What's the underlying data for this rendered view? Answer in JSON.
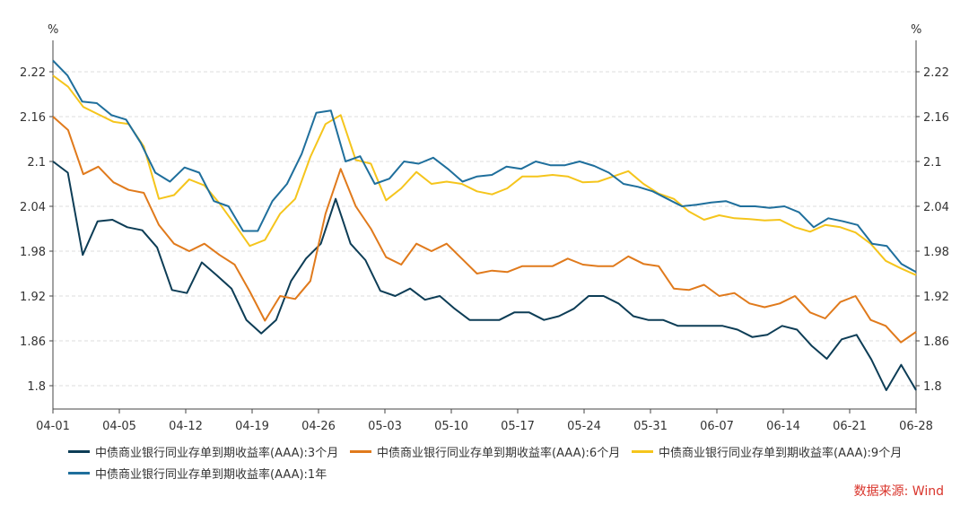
{
  "chart_data": {
    "type": "line",
    "unit_left": "%",
    "unit_right": "%",
    "ylim": [
      1.75,
      2.25
    ],
    "yticks": [
      1.8,
      1.86,
      1.92,
      1.98,
      2.04,
      2.1,
      2.16,
      2.22
    ],
    "ytick_labels": [
      "1.8",
      "1.86",
      "1.92",
      "1.98",
      "2.04",
      "2.1",
      "2.16",
      "2.22"
    ],
    "x_tick_labels": [
      "04-01",
      "04-05",
      "04-12",
      "04-19",
      "04-26",
      "05-03",
      "05-10",
      "05-17",
      "05-24",
      "05-31",
      "06-07",
      "06-14",
      "06-21",
      "06-28"
    ],
    "grid": "horizontal dashed",
    "legend_position": "bottom",
    "source_text": "数据来源: Wind",
    "series": [
      {
        "name": "中债商业银行同业存单到期收益率(AAA):3个月",
        "color": "#0d3d56",
        "values": [
          2.1,
          2.085,
          1.975,
          2.02,
          2.022,
          2.012,
          2.008,
          1.985,
          1.928,
          1.924,
          1.965,
          1.948,
          1.93,
          1.888,
          1.87,
          1.888,
          1.94,
          1.97,
          1.99,
          2.05,
          1.99,
          1.968,
          1.927,
          1.92,
          1.93,
          1.915,
          1.92,
          1.903,
          1.888,
          1.888,
          1.888,
          1.898,
          1.898,
          1.888,
          1.893,
          1.903,
          1.92,
          1.92,
          1.91,
          1.893,
          1.888,
          1.888,
          1.88,
          1.88,
          1.88,
          1.88,
          1.875,
          1.865,
          1.868,
          1.88,
          1.875,
          1.853,
          1.836,
          1.862,
          1.868,
          1.835,
          1.794,
          1.828,
          1.794
        ]
      },
      {
        "name": "中债商业银行同业存单到期收益率(AAA):6个月",
        "color": "#e07a1c",
        "values": [
          2.16,
          2.142,
          2.083,
          2.093,
          2.072,
          2.062,
          2.058,
          2.015,
          1.99,
          1.98,
          1.99,
          1.975,
          1.962,
          1.926,
          1.887,
          1.92,
          1.916,
          1.94,
          2.03,
          2.09,
          2.04,
          2.01,
          1.972,
          1.962,
          1.99,
          1.98,
          1.99,
          1.97,
          1.95,
          1.954,
          1.952,
          1.96,
          1.96,
          1.96,
          1.97,
          1.962,
          1.96,
          1.96,
          1.973,
          1.963,
          1.96,
          1.93,
          1.928,
          1.935,
          1.92,
          1.924,
          1.91,
          1.905,
          1.91,
          1.92,
          1.898,
          1.89,
          1.912,
          1.92,
          1.888,
          1.88,
          1.858,
          1.872
        ]
      },
      {
        "name": "中债商业银行同业存单到期收益率(AAA):9个月",
        "color": "#f5c51c",
        "values": [
          2.215,
          2.2,
          2.173,
          2.163,
          2.153,
          2.15,
          2.12,
          2.05,
          2.055,
          2.076,
          2.068,
          2.044,
          2.016,
          1.987,
          1.995,
          2.03,
          2.05,
          2.106,
          2.15,
          2.162,
          2.102,
          2.097,
          2.048,
          2.064,
          2.086,
          2.07,
          2.073,
          2.07,
          2.06,
          2.056,
          2.064,
          2.08,
          2.08,
          2.082,
          2.08,
          2.072,
          2.073,
          2.08,
          2.087,
          2.07,
          2.057,
          2.05,
          2.033,
          2.022,
          2.028,
          2.024,
          2.023,
          2.021,
          2.022,
          2.012,
          2.006,
          2.015,
          2.012,
          2.005,
          1.99,
          1.967,
          1.957,
          1.948
        ]
      },
      {
        "name": "中债商业银行同业存单到期收益率(AAA):1年",
        "color": "#1f6f9c",
        "values": [
          2.235,
          2.215,
          2.18,
          2.178,
          2.162,
          2.156,
          2.125,
          2.085,
          2.073,
          2.092,
          2.085,
          2.047,
          2.04,
          2.007,
          2.007,
          2.047,
          2.07,
          2.11,
          2.165,
          2.168,
          2.1,
          2.107,
          2.07,
          2.077,
          2.1,
          2.097,
          2.105,
          2.09,
          2.073,
          2.08,
          2.082,
          2.093,
          2.09,
          2.1,
          2.095,
          2.095,
          2.1,
          2.094,
          2.085,
          2.07,
          2.066,
          2.06,
          2.05,
          2.04,
          2.042,
          2.045,
          2.047,
          2.04,
          2.04,
          2.038,
          2.04,
          2.032,
          2.012,
          2.024,
          2.02,
          2.015,
          1.99,
          1.987,
          1.963,
          1.952
        ]
      }
    ]
  }
}
